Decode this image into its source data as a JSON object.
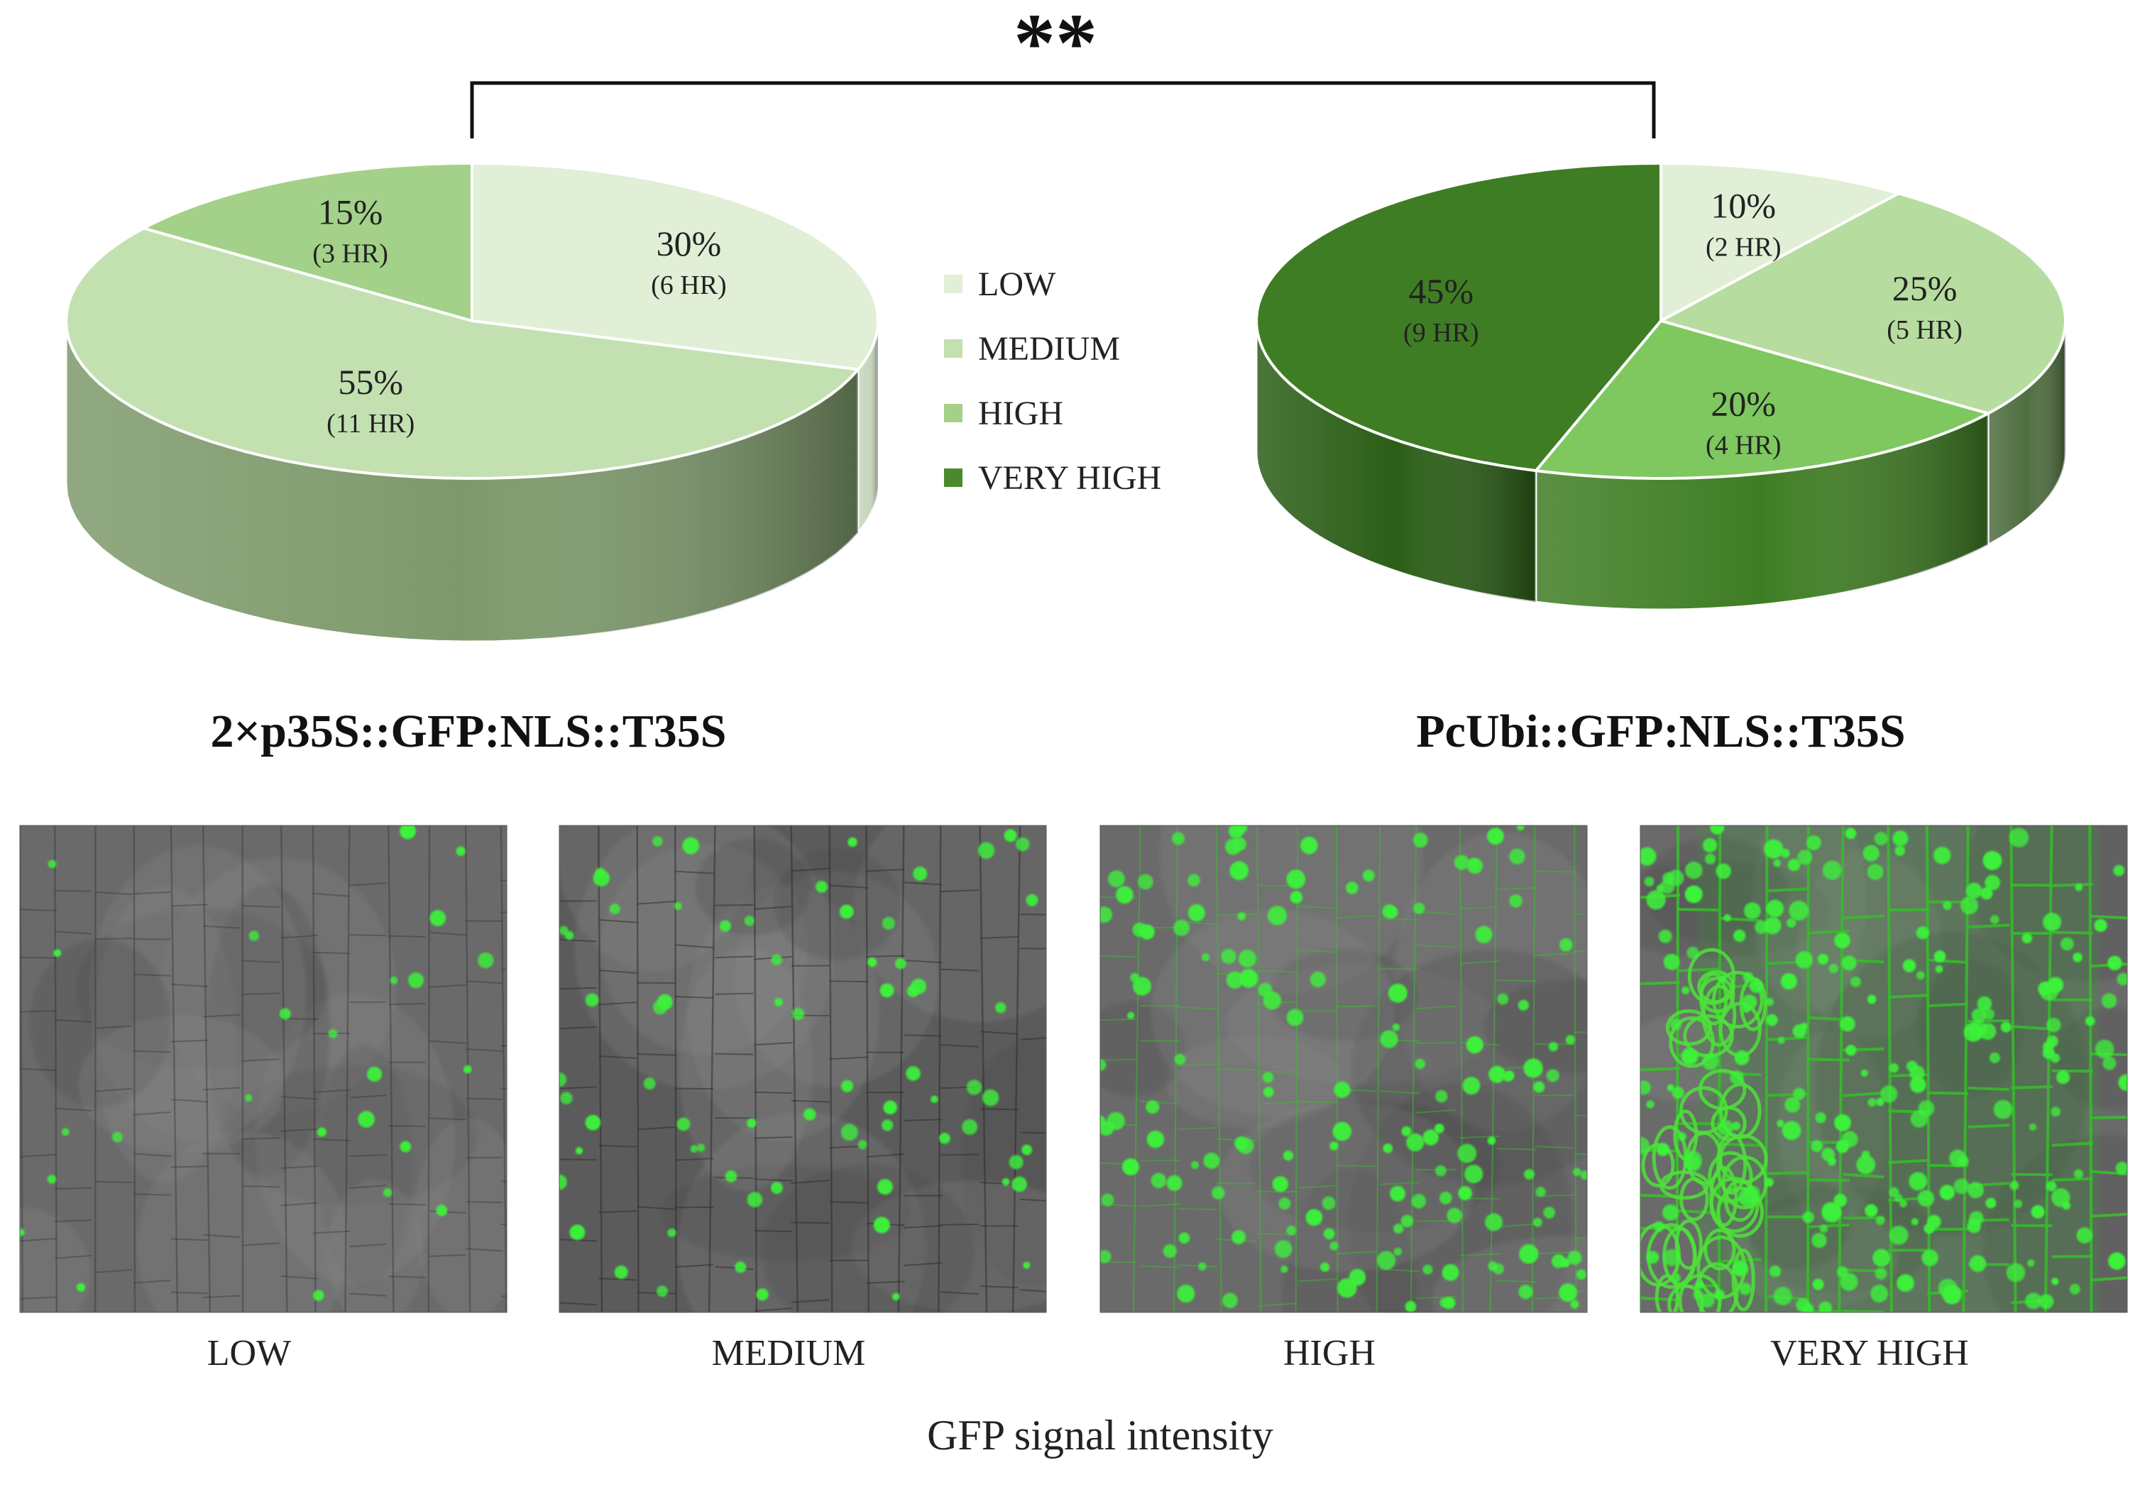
{
  "figure": {
    "significance": "**",
    "xlabel": "GFP signal intensity"
  },
  "legend": {
    "items": [
      {
        "label": "LOW",
        "color": "#e0efd6"
      },
      {
        "label": "MEDIUM",
        "color": "#c3e0b1"
      },
      {
        "label": "HIGH",
        "color": "#a3d189"
      },
      {
        "label": "VERY HIGH",
        "color": "#4a8a2c"
      }
    ]
  },
  "chart_data": [
    {
      "type": "pie",
      "title": "2×p35S::GFP:NLS::T35S",
      "categories": [
        "LOW",
        "MEDIUM",
        "HIGH",
        "VERY HIGH"
      ],
      "values": [
        30,
        55,
        15,
        0
      ],
      "counts": [
        6,
        11,
        3,
        0
      ],
      "slices": [
        {
          "category": "LOW",
          "percent_label": "30%",
          "count_label": "(6 HR)",
          "color": "#e0efd6",
          "side": "#c7d6bd"
        },
        {
          "category": "MEDIUM",
          "percent_label": "55%",
          "count_label": "(11 HR)",
          "color": "#c3e0b1",
          "side": "#7e9a6c"
        },
        {
          "category": "HIGH",
          "percent_label": "15%",
          "count_label": "(3 HR)",
          "color": "#a3d189",
          "side": "#6d9555"
        }
      ]
    },
    {
      "type": "pie",
      "title": "PcUbi::GFP:NLS::T35S",
      "categories": [
        "LOW",
        "MEDIUM",
        "HIGH",
        "VERY HIGH"
      ],
      "values": [
        10,
        25,
        20,
        45
      ],
      "counts": [
        2,
        5,
        4,
        9
      ],
      "slices": [
        {
          "category": "LOW",
          "percent_label": "10%",
          "count_label": "(2 HR)",
          "color": "#e0efd6",
          "side": "#b7c6ad"
        },
        {
          "category": "MEDIUM",
          "percent_label": "25%",
          "count_label": "(5 HR)",
          "color": "#b7dca0",
          "side": "#4f6e40"
        },
        {
          "category": "HIGH",
          "percent_label": "20%",
          "count_label": "(4 HR)",
          "color": "#7ec85f",
          "side": "#3f7d24"
        },
        {
          "category": "VERY HIGH",
          "percent_label": "45%",
          "count_label": "(9 HR)",
          "color": "#3f7d24",
          "side": "#2b5e17"
        }
      ]
    }
  ],
  "micrographs": [
    {
      "label": "LOW",
      "level": 0.08
    },
    {
      "label": "MEDIUM",
      "level": 0.3
    },
    {
      "label": "HIGH",
      "level": 0.65
    },
    {
      "label": "VERY HIGH",
      "level": 1.0
    }
  ]
}
